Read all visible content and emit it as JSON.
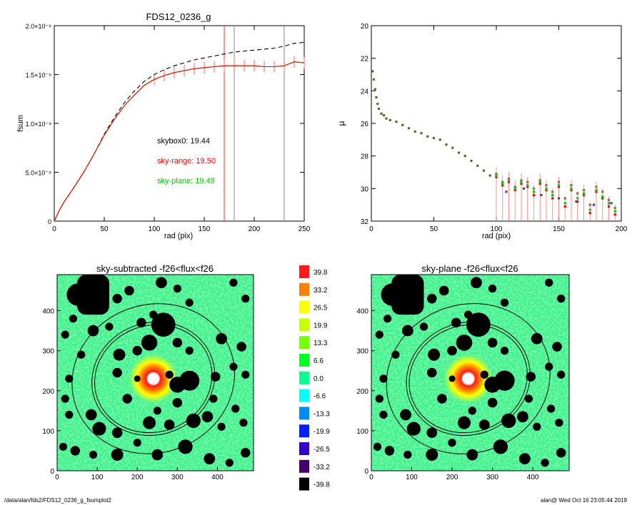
{
  "footer": {
    "path": "/data/alan/fds2/FDS12_0236_g_fsumplot2",
    "stamp": "alan@  Wed Oct 16 23:05:44 2019"
  },
  "chart_data": [
    {
      "id": "fsum",
      "type": "line",
      "title": "FDS12_0236_g",
      "xlabel": "rad (pix)",
      "ylabel": "fsum",
      "xlim": [
        0,
        250
      ],
      "ylim": [
        0,
        2e-08
      ],
      "x_ticks": [
        "0",
        "50",
        "100",
        "150",
        "200",
        "250"
      ],
      "y_ticks": [
        "0",
        "5.0×10⁻⁹",
        "1.0×10⁻⁸",
        "1.5×10⁻⁸",
        "2.0×10⁻⁸"
      ],
      "y_tick_values": [
        0,
        5e-09,
        1e-08,
        1.5e-08,
        2e-08
      ],
      "annotations": [
        {
          "text": "skybox0: 19.44",
          "color": "#000000"
        },
        {
          "text": "sky-range: 19.50",
          "color": "#ff0000"
        },
        {
          "text": "sky-plane: 19.49",
          "color": "#00cc00"
        }
      ],
      "vlines": [
        {
          "x": 170,
          "color": "#ff3333"
        },
        {
          "x": 180,
          "color": "#888888"
        },
        {
          "x": 230,
          "color": "#888888"
        }
      ],
      "series": [
        {
          "style": "dashed",
          "color": "#000000",
          "x": [
            0,
            5,
            10,
            20,
            30,
            40,
            50,
            60,
            70,
            80,
            90,
            100,
            110,
            120,
            130,
            140,
            150,
            160,
            170,
            180,
            190,
            200,
            210,
            220,
            230,
            240,
            250
          ],
          "y": [
            0,
            1.1e-09,
            2e-09,
            3.5e-09,
            5.1e-09,
            6.9e-09,
            8.9e-09,
            1.06e-08,
            1.21e-08,
            1.33e-08,
            1.43e-08,
            1.5e-08,
            1.55e-08,
            1.59e-08,
            1.62e-08,
            1.65e-08,
            1.67e-08,
            1.69e-08,
            1.71e-08,
            1.73e-08,
            1.74e-08,
            1.75e-08,
            1.76e-08,
            1.77e-08,
            1.79e-08,
            1.82e-08,
            1.83e-08
          ]
        },
        {
          "style": "solid",
          "color": "#ff0000",
          "error": true,
          "x": [
            0,
            5,
            10,
            20,
            30,
            40,
            50,
            60,
            70,
            80,
            90,
            100,
            110,
            120,
            130,
            140,
            150,
            160,
            170,
            180,
            190,
            200,
            210,
            220,
            230,
            240,
            250
          ],
          "y": [
            0,
            1.1e-09,
            2e-09,
            3.5e-09,
            5.1e-09,
            6.9e-09,
            8.8e-09,
            1.04e-08,
            1.18e-08,
            1.29e-08,
            1.39e-08,
            1.45e-08,
            1.49e-08,
            1.52e-08,
            1.54e-08,
            1.56e-08,
            1.57e-08,
            1.58e-08,
            1.59e-08,
            1.59e-08,
            1.59e-08,
            1.59e-08,
            1.58e-08,
            1.58e-08,
            1.59e-08,
            1.63e-08,
            1.62e-08
          ]
        },
        {
          "style": "solid",
          "color": "#00cc00",
          "x": [
            0,
            5,
            10,
            20,
            30,
            40,
            50,
            60,
            70,
            80,
            90,
            100,
            110,
            120,
            130,
            140,
            150,
            160,
            170,
            180,
            190,
            200,
            210,
            220,
            230,
            240,
            250
          ],
          "y": [
            0,
            1.1e-09,
            2e-09,
            3.5e-09,
            5.1e-09,
            6.9e-09,
            8.8e-09,
            1.04e-08,
            1.18e-08,
            1.29e-08,
            1.39e-08,
            1.45e-08,
            1.49e-08,
            1.52e-08,
            1.54e-08,
            1.56e-08,
            1.57e-08,
            1.58e-08,
            1.59e-08,
            1.59e-08,
            1.59e-08,
            1.59e-08,
            1.58e-08,
            1.58e-08,
            1.59e-08,
            1.63e-08,
            1.62e-08
          ]
        }
      ]
    },
    {
      "id": "mu",
      "type": "scatter",
      "title": "",
      "xlabel": "rad (pix)",
      "ylabel": "μ",
      "xlim": [
        0,
        200
      ],
      "ylim": [
        32,
        20
      ],
      "y_reversed": true,
      "x_ticks": [
        "0",
        "50",
        "100",
        "150",
        "200"
      ],
      "y_ticks": [
        "20",
        "22",
        "24",
        "26",
        "28",
        "30",
        "32"
      ],
      "series": [
        {
          "marker": "square",
          "color": "#556b2f",
          "x": [
            1,
            2,
            3,
            4,
            5,
            6,
            8,
            10,
            12,
            15,
            20,
            25,
            30,
            35,
            40,
            45,
            50,
            55,
            60,
            65,
            70,
            75,
            80,
            85,
            90,
            95,
            100,
            105,
            110,
            115,
            120,
            125,
            130,
            135,
            140,
            145,
            150,
            155,
            160,
            165,
            170,
            175,
            180,
            185,
            190,
            195
          ],
          "y": [
            22.8,
            23.3,
            23.9,
            24.4,
            24.8,
            25.1,
            25.4,
            25.5,
            25.7,
            25.8,
            25.9,
            26.1,
            26.3,
            26.5,
            26.6,
            26.8,
            26.9,
            27.0,
            27.3,
            27.5,
            27.8,
            28.0,
            28.3,
            28.6,
            28.9,
            29.2,
            29.1,
            29.6,
            29.4,
            29.9,
            29.5,
            29.6,
            30.0,
            29.5,
            29.8,
            30.2,
            29.6,
            30.6,
            29.8,
            30.3,
            30.1,
            31.0,
            29.9,
            30.2,
            30.7,
            31.2
          ]
        },
        {
          "marker": "square",
          "color": "#ff0000",
          "error": true,
          "x": [
            100,
            105,
            110,
            115,
            120,
            125,
            130,
            135,
            140,
            145,
            150,
            155,
            160,
            165,
            170,
            175,
            180,
            185,
            190,
            195
          ],
          "y": [
            29.3,
            29.8,
            29.6,
            30.1,
            29.7,
            29.9,
            30.4,
            29.7,
            30.1,
            30.6,
            29.9,
            31.1,
            30.1,
            30.8,
            30.4,
            31.5,
            30.2,
            30.6,
            31.1,
            31.6
          ]
        },
        {
          "marker": "square",
          "color": "#00cc00",
          "x": [
            100,
            105,
            110,
            115,
            120,
            125,
            130,
            135,
            140,
            145,
            150,
            155,
            160,
            165,
            170,
            175,
            180,
            185,
            190,
            195
          ],
          "y": [
            29.2,
            29.7,
            29.5,
            30.0,
            29.6,
            29.8,
            30.2,
            29.6,
            30.0,
            30.4,
            29.8,
            30.9,
            30.0,
            30.6,
            30.3,
            31.3,
            30.1,
            30.5,
            30.9,
            31.4
          ]
        },
        {
          "marker": "square",
          "color": "#444488",
          "x": [
            108,
            122,
            136,
            150,
            164,
            178,
            192
          ],
          "y": [
            30.2,
            30.0,
            30.4,
            30.6,
            30.8,
            31.0,
            30.9
          ]
        }
      ]
    },
    {
      "id": "sky-subtracted",
      "type": "heatmap",
      "title": "sky-subtracted -f26<flux<f26",
      "xlim": [
        0,
        490
      ],
      "ylim": [
        0,
        490
      ],
      "x_ticks": [
        "0",
        "100",
        "200",
        "300",
        "400"
      ],
      "y_ticks": [
        "0",
        "100",
        "200",
        "300",
        "400"
      ],
      "center": [
        240,
        230
      ],
      "ellipses": [
        {
          "rx": 205,
          "ry": 185,
          "angle": -20
        },
        {
          "rx": 155,
          "ry": 140,
          "angle": -20
        },
        {
          "rx": 148,
          "ry": 133,
          "angle": -20
        }
      ],
      "masks": [
        [
          52,
          440,
          28
        ],
        [
          85,
          440,
          14
        ],
        [
          150,
          430,
          12
        ],
        [
          180,
          450,
          12
        ],
        [
          260,
          470,
          14
        ],
        [
          300,
          455,
          10
        ],
        [
          330,
          420,
          10
        ],
        [
          440,
          470,
          10
        ],
        [
          470,
          430,
          10
        ],
        [
          40,
          380,
          10
        ],
        [
          90,
          350,
          14
        ],
        [
          130,
          360,
          10
        ],
        [
          210,
          370,
          12
        ],
        [
          240,
          390,
          10
        ],
        [
          265,
          365,
          30
        ],
        [
          230,
          320,
          20
        ],
        [
          200,
          300,
          12
        ],
        [
          300,
          320,
          12
        ],
        [
          330,
          300,
          10
        ],
        [
          410,
          330,
          14
        ],
        [
          460,
          310,
          12
        ],
        [
          20,
          340,
          10
        ],
        [
          155,
          290,
          15
        ],
        [
          150,
          245,
          12
        ],
        [
          200,
          230,
          8
        ],
        [
          280,
          240,
          10
        ],
        [
          300,
          215,
          20
        ],
        [
          330,
          225,
          25
        ],
        [
          395,
          235,
          12
        ],
        [
          440,
          260,
          10
        ],
        [
          470,
          240,
          10
        ],
        [
          30,
          230,
          10
        ],
        [
          20,
          180,
          10
        ],
        [
          85,
          140,
          14
        ],
        [
          105,
          105,
          17
        ],
        [
          150,
          95,
          13
        ],
        [
          230,
          120,
          16
        ],
        [
          280,
          115,
          13
        ],
        [
          340,
          125,
          18
        ],
        [
          375,
          135,
          14
        ],
        [
          410,
          110,
          10
        ],
        [
          445,
          155,
          10
        ],
        [
          465,
          120,
          10
        ],
        [
          45,
          50,
          12
        ],
        [
          90,
          40,
          10
        ],
        [
          150,
          40,
          15
        ],
        [
          200,
          70,
          10
        ],
        [
          250,
          40,
          14
        ],
        [
          320,
          60,
          18
        ],
        [
          380,
          30,
          14
        ],
        [
          430,
          20,
          10
        ],
        [
          470,
          45,
          12
        ],
        [
          300,
          170,
          12
        ],
        [
          390,
          180,
          10
        ],
        [
          175,
          180,
          12
        ],
        [
          250,
          150,
          10
        ],
        [
          60,
          290,
          10
        ],
        [
          30,
          140,
          10
        ],
        [
          15,
          60,
          10
        ]
      ]
    },
    {
      "id": "colorbar",
      "type": "table",
      "labels": [
        "39.8",
        "33.2",
        "26.5",
        "19.9",
        "13.3",
        "6.6",
        "0.0",
        "-6.6",
        "-13.3",
        "-19.9",
        "-26.5",
        "-33.2",
        "-39.8"
      ],
      "colors": [
        "#ff1a1a",
        "#ff8000",
        "#ffff00",
        "#c8ff00",
        "#73ff00",
        "#00ff20",
        "#00ff8c",
        "#00ffff",
        "#008cff",
        "#0020ff",
        "#3300cc",
        "#440066",
        "#000000"
      ]
    },
    {
      "id": "sky-plane",
      "type": "heatmap",
      "title": "sky-plane -f26<flux<f26",
      "xlim": [
        0,
        490
      ],
      "ylim": [
        0,
        490
      ],
      "x_ticks": [
        "0",
        "100",
        "200",
        "300",
        "400"
      ],
      "y_ticks": [
        "0",
        "100",
        "200",
        "300",
        "400"
      ]
    }
  ]
}
